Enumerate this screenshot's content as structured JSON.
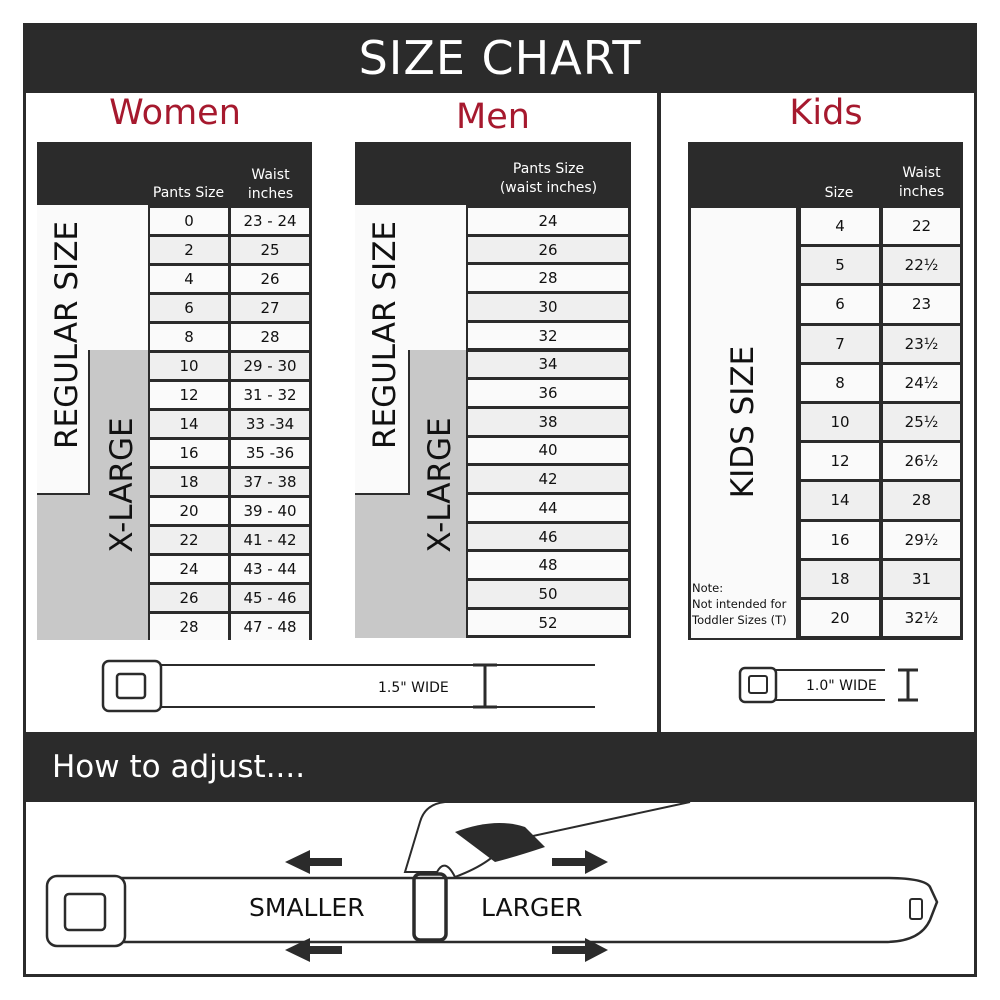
{
  "title": "SIZE CHART",
  "accent_color": "#a6192e",
  "women": {
    "heading": "Women",
    "col_headers": [
      "Pants Size",
      "Waist\ninches"
    ],
    "group_labels": {
      "regular": "REGULAR SIZE",
      "xlarge": "X-LARGE"
    },
    "rows": [
      [
        "0",
        "23 - 24"
      ],
      [
        "2",
        "25"
      ],
      [
        "4",
        "26"
      ],
      [
        "6",
        "27"
      ],
      [
        "8",
        "28"
      ],
      [
        "10",
        "29 - 30"
      ],
      [
        "12",
        "31 - 32"
      ],
      [
        "14",
        "33 -34"
      ],
      [
        "16",
        "35 -36"
      ],
      [
        "18",
        "37 - 38"
      ],
      [
        "20",
        "39 - 40"
      ],
      [
        "22",
        "41 - 42"
      ],
      [
        "24",
        "43 - 44"
      ],
      [
        "26",
        "45 - 46"
      ],
      [
        "28",
        "47 - 48"
      ]
    ],
    "belt_width": "1.5\" WIDE"
  },
  "men": {
    "heading": "Men",
    "col_headers": [
      "Pants Size\n(waist inches)"
    ],
    "group_labels": {
      "regular": "REGULAR SIZE",
      "xlarge": "X-LARGE"
    },
    "rows": [
      [
        "24"
      ],
      [
        "26"
      ],
      [
        "28"
      ],
      [
        "30"
      ],
      [
        "32"
      ],
      [
        "34"
      ],
      [
        "36"
      ],
      [
        "38"
      ],
      [
        "40"
      ],
      [
        "42"
      ],
      [
        "44"
      ],
      [
        "46"
      ],
      [
        "48"
      ],
      [
        "50"
      ],
      [
        "52"
      ]
    ]
  },
  "kids": {
    "heading": "Kids",
    "col_headers": [
      "Size",
      "Waist\ninches"
    ],
    "group_label": "KIDS SIZE",
    "note": "Note:\nNot intended for\nToddler Sizes (T)",
    "rows": [
      [
        "4",
        "22"
      ],
      [
        "5",
        "22½"
      ],
      [
        "6",
        "23"
      ],
      [
        "7",
        "23½"
      ],
      [
        "8",
        "24½"
      ],
      [
        "10",
        "25½"
      ],
      [
        "12",
        "26½"
      ],
      [
        "14",
        "28"
      ],
      [
        "16",
        "29½"
      ],
      [
        "18",
        "31"
      ],
      [
        "20",
        "32½"
      ]
    ],
    "belt_width": "1.0\" WIDE"
  },
  "adjust": {
    "heading": "How to adjust....",
    "smaller": "SMALLER",
    "larger": "LARGER"
  }
}
